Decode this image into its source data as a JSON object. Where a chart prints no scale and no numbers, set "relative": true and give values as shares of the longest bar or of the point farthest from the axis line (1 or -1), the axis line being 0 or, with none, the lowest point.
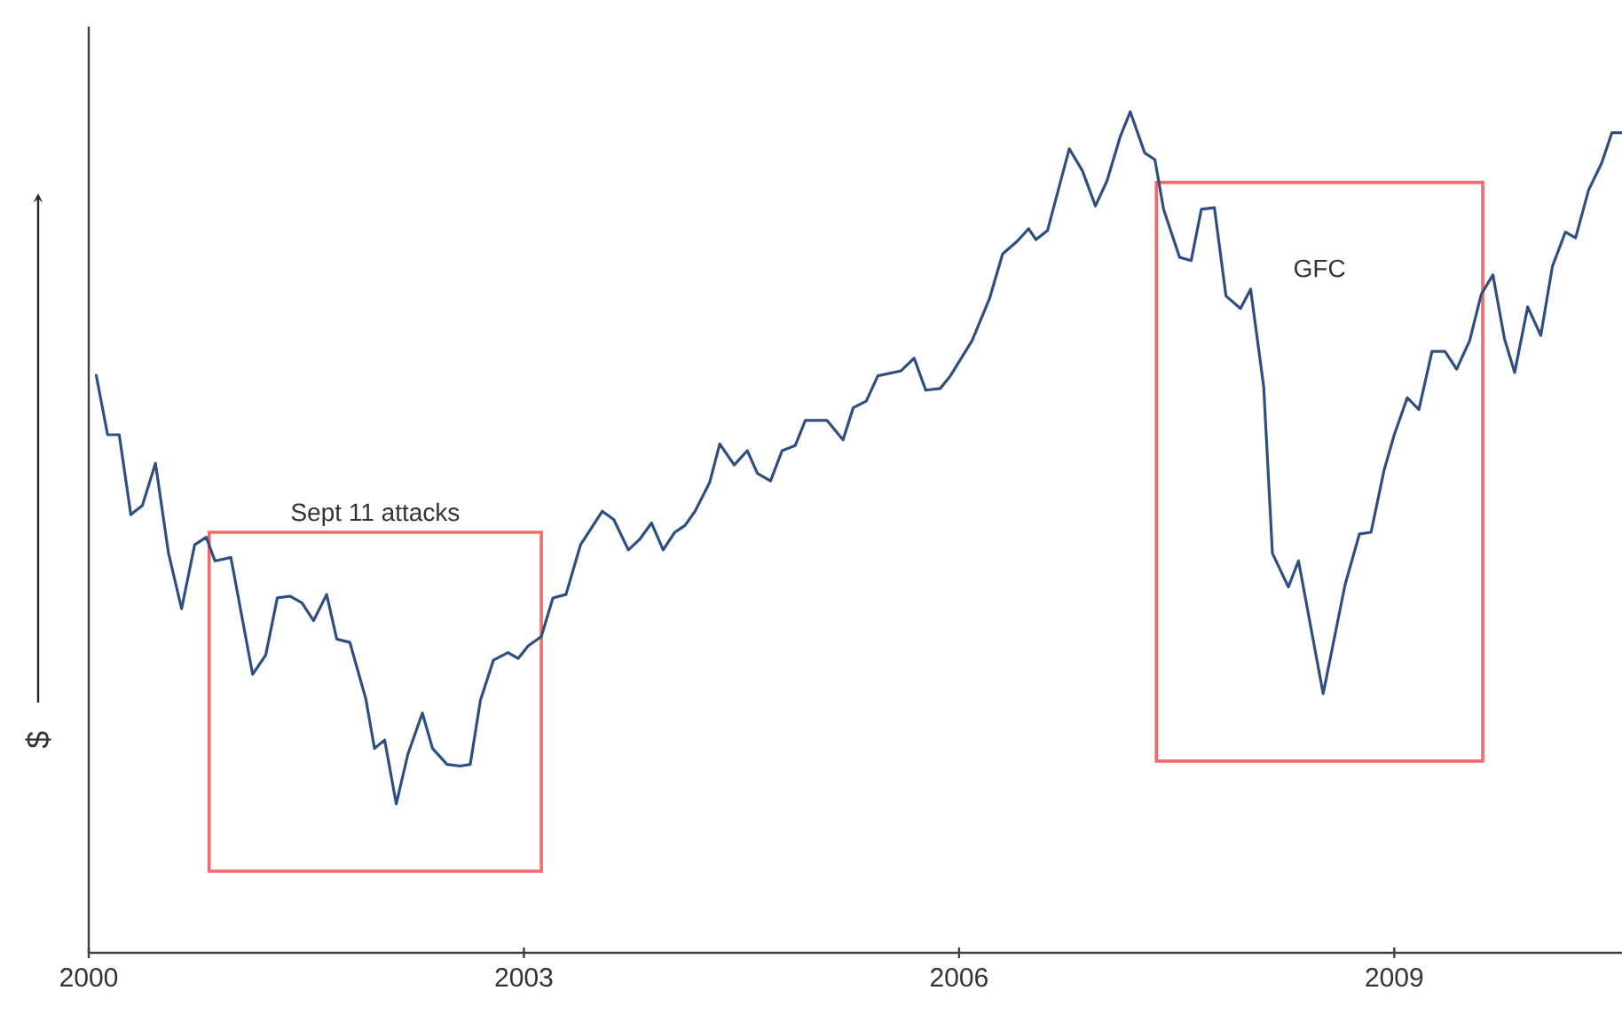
{
  "chart_data": {
    "type": "line",
    "ylabel": "$",
    "relative": true,
    "xlim": [
      2000,
      2010.57
    ],
    "xticks": [
      2000,
      2003,
      2006,
      2009
    ],
    "marker": "none",
    "line_style": "solid",
    "bands": [
      {
        "axis": "x",
        "from": 2000.83,
        "to": 2003.12,
        "label": "Sept 11 attacks",
        "color": "#f26b6b"
      },
      {
        "axis": "x",
        "from": 2007.36,
        "to": 2009.61,
        "label": "GFC",
        "color": "#f26b6b"
      }
    ],
    "series": [
      {
        "color": "#2e4f7f",
        "x": [
          2000.05,
          2000.13,
          2000.21,
          2000.29,
          2000.37,
          2000.46,
          2000.55,
          2000.64,
          2000.73,
          2000.81,
          2000.87,
          2000.98,
          2001.13,
          2001.22,
          2001.3,
          2001.39,
          2001.47,
          2001.55,
          2001.64,
          2001.71,
          2001.8,
          2001.91,
          2001.97,
          2002.04,
          2002.12,
          2002.2,
          2002.3,
          2002.37,
          2002.47,
          2002.56,
          2002.63,
          2002.7,
          2002.79,
          2002.89,
          2002.96,
          2003.03,
          2003.12,
          2003.2,
          2003.29,
          2003.39,
          2003.54,
          2003.62,
          2003.72,
          2003.8,
          2003.88,
          2003.96,
          2004.04,
          2004.11,
          2004.18,
          2004.28,
          2004.35,
          2004.45,
          2004.54,
          2004.61,
          2004.7,
          2004.78,
          2004.87,
          2004.94,
          2005.09,
          2005.2,
          2005.27,
          2005.36,
          2005.44,
          2005.6,
          2005.69,
          2005.77,
          2005.87,
          2005.94,
          2006.09,
          2006.21,
          2006.3,
          2006.4,
          2006.48,
          2006.53,
          2006.61,
          2006.69,
          2006.76,
          2006.85,
          2006.94,
          2007.02,
          2007.11,
          2007.18,
          2007.28,
          2007.35,
          2007.41,
          2007.52,
          2007.6,
          2007.67,
          2007.76,
          2007.84,
          2007.94,
          2008.01,
          2008.1,
          2008.16,
          2008.27,
          2008.34,
          2008.51,
          2008.66,
          2008.76,
          2008.84,
          2008.93,
          2009.0,
          2009.09,
          2009.17,
          2009.26,
          2009.35,
          2009.43,
          2009.52,
          2009.6,
          2009.68,
          2009.76,
          2009.83,
          2009.92,
          2010.01,
          2010.09,
          2010.18,
          2010.25,
          2010.34,
          2010.43,
          2010.5,
          2010.57
        ],
        "values": [
          0.688,
          0.616,
          0.616,
          0.521,
          0.532,
          0.582,
          0.475,
          0.409,
          0.485,
          0.494,
          0.466,
          0.47,
          0.331,
          0.354,
          0.422,
          0.424,
          0.416,
          0.395,
          0.426,
          0.373,
          0.369,
          0.302,
          0.243,
          0.253,
          0.177,
          0.236,
          0.285,
          0.243,
          0.224,
          0.222,
          0.224,
          0.3,
          0.348,
          0.357,
          0.35,
          0.365,
          0.376,
          0.422,
          0.426,
          0.485,
          0.525,
          0.515,
          0.479,
          0.492,
          0.511,
          0.479,
          0.5,
          0.508,
          0.525,
          0.559,
          0.605,
          0.58,
          0.597,
          0.57,
          0.561,
          0.597,
          0.603,
          0.633,
          0.633,
          0.61,
          0.648,
          0.656,
          0.686,
          0.692,
          0.707,
          0.669,
          0.671,
          0.686,
          0.728,
          0.778,
          0.831,
          0.846,
          0.861,
          0.848,
          0.859,
          0.911,
          0.956,
          0.93,
          0.888,
          0.918,
          0.97,
          1.0,
          0.951,
          0.943,
          0.884,
          0.827,
          0.823,
          0.884,
          0.886,
          0.781,
          0.766,
          0.789,
          0.673,
          0.475,
          0.435,
          0.466,
          0.308,
          0.437,
          0.498,
          0.5,
          0.574,
          0.616,
          0.66,
          0.646,
          0.715,
          0.715,
          0.694,
          0.728,
          0.783,
          0.806,
          0.73,
          0.69,
          0.768,
          0.734,
          0.816,
          0.857,
          0.85,
          0.907,
          0.939,
          0.975,
          0.975
        ]
      }
    ]
  }
}
